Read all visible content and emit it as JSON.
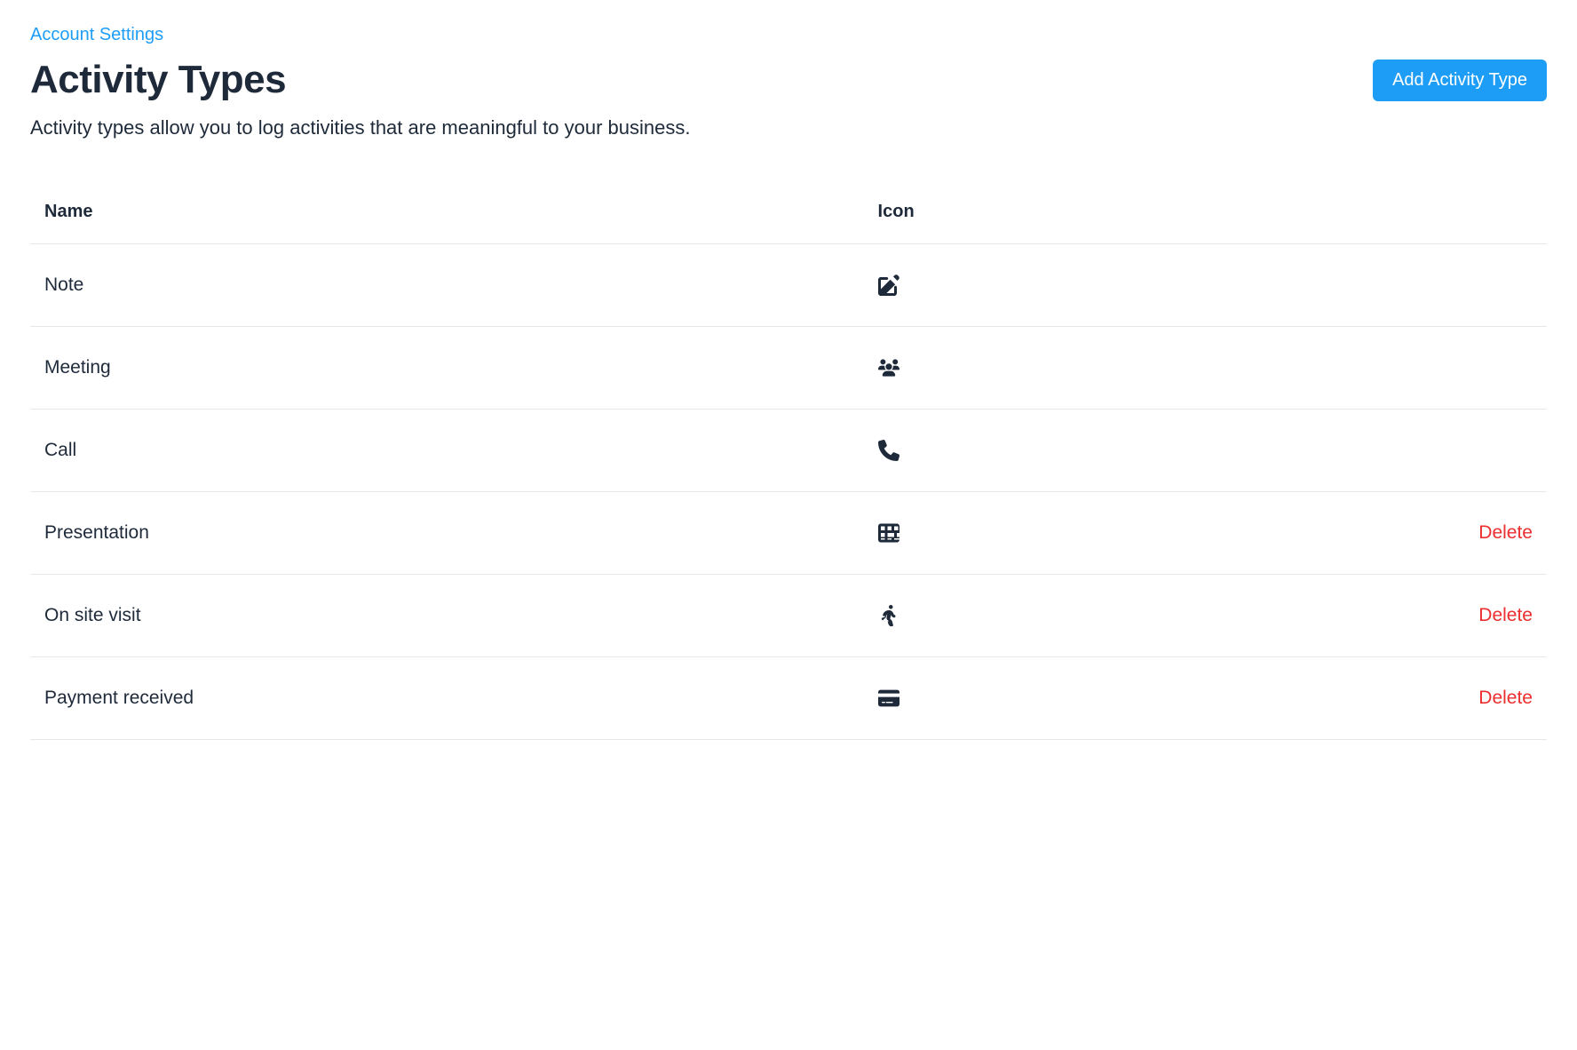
{
  "breadcrumb": {
    "label": "Account Settings"
  },
  "header": {
    "title": "Activity Types",
    "add_button": "Add Activity Type"
  },
  "description": "Activity types allow you to log activities that are meaningful to your business.",
  "table": {
    "columns": {
      "name": "Name",
      "icon": "Icon"
    },
    "delete_label": "Delete",
    "rows": [
      {
        "name": "Note",
        "icon": "edit-icon",
        "deletable": false
      },
      {
        "name": "Meeting",
        "icon": "users-icon",
        "deletable": false
      },
      {
        "name": "Call",
        "icon": "phone-icon",
        "deletable": false
      },
      {
        "name": "Presentation",
        "icon": "grid-icon",
        "deletable": true
      },
      {
        "name": "On site visit",
        "icon": "walking-icon",
        "deletable": true
      },
      {
        "name": "Payment received",
        "icon": "credit-card-icon",
        "deletable": true
      }
    ]
  },
  "colors": {
    "link": "#1e9df7",
    "primary_button_bg": "#1e9df7",
    "primary_button_text": "#ffffff",
    "text": "#1e2a3a",
    "border": "#e5e7eb",
    "delete": "#ec2e2e",
    "background": "#ffffff"
  }
}
